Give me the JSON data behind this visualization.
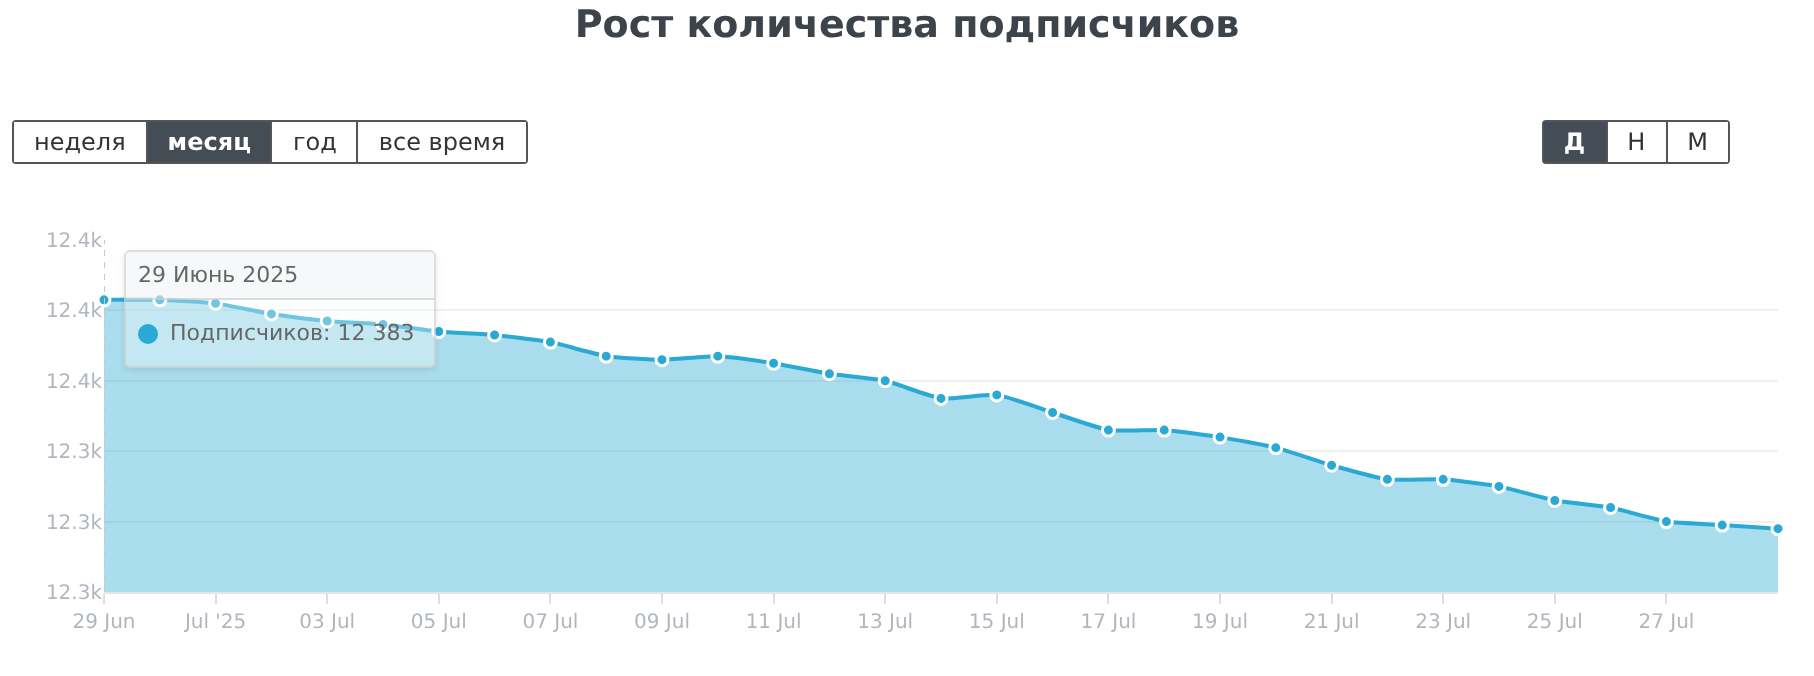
{
  "chart_data": {
    "type": "area",
    "title": "Рост количества подписчиков",
    "x": [
      "2025-06-29",
      "2025-06-30",
      "2025-07-01",
      "2025-07-02",
      "2025-07-03",
      "2025-07-04",
      "2025-07-05",
      "2025-07-06",
      "2025-07-07",
      "2025-07-08",
      "2025-07-09",
      "2025-07-10",
      "2025-07-11",
      "2025-07-12",
      "2025-07-13",
      "2025-07-14",
      "2025-07-15",
      "2025-07-16",
      "2025-07-17",
      "2025-07-18",
      "2025-07-19",
      "2025-07-20",
      "2025-07-21",
      "2025-07-22",
      "2025-07-23",
      "2025-07-24",
      "2025-07-25",
      "2025-07-26",
      "2025-07-27",
      "2025-07-28",
      "2025-07-29"
    ],
    "series": [
      {
        "color": "#29a9d3",
        "values": [
          12383,
          12383,
          12382,
          12379,
          12377,
          12376,
          12374,
          12373,
          12371,
          12367,
          12366,
          12367,
          12365,
          12362,
          12360,
          12355,
          12356,
          12351,
          12346,
          12346,
          12344,
          12341,
          12336,
          12332,
          12332,
          12330,
          12326,
          12324,
          12320,
          12319,
          12318
        ]
      }
    ],
    "xlim": [
      "2025-06-29",
      "2025-07-29"
    ],
    "xticks": [
      {
        "value": "2025-06-29",
        "label": "29 Jun"
      },
      {
        "value": "2025-07-01",
        "label": "Jul '25"
      },
      {
        "value": "2025-07-03",
        "label": "03 Jul"
      },
      {
        "value": "2025-07-05",
        "label": "05 Jul"
      },
      {
        "value": "2025-07-07",
        "label": "07 Jul"
      },
      {
        "value": "2025-07-09",
        "label": "09 Jul"
      },
      {
        "value": "2025-07-11",
        "label": "11 Jul"
      },
      {
        "value": "2025-07-13",
        "label": "13 Jul"
      },
      {
        "value": "2025-07-15",
        "label": "15 Jul"
      },
      {
        "value": "2025-07-17",
        "label": "17 Jul"
      },
      {
        "value": "2025-07-19",
        "label": "19 Jul"
      },
      {
        "value": "2025-07-21",
        "label": "21 Jul"
      },
      {
        "value": "2025-07-23",
        "label": "23 Jul"
      },
      {
        "value": "2025-07-25",
        "label": "25 Jul"
      },
      {
        "value": "2025-07-27",
        "label": "27 Jul"
      }
    ],
    "ylim": [
      12300,
      12400
    ],
    "yticks": [
      {
        "value": 12300,
        "label": "12.3k"
      },
      {
        "value": 12320,
        "label": "12.3k"
      },
      {
        "value": 12340,
        "label": "12.3k"
      },
      {
        "value": 12360,
        "label": "12.4k"
      },
      {
        "value": 12380,
        "label": "12.4k"
      },
      {
        "value": 12400,
        "label": "12.4k"
      }
    ],
    "grid": "y",
    "marker": "circle",
    "line_style": "solid",
    "legend": false,
    "ref_lines": [
      {
        "axis": "x",
        "value": "2025-06-29",
        "label": null,
        "color": "#c8c8c8",
        "line_style": "dotted"
      }
    ],
    "annotations": [
      "неделя",
      "месяц",
      "год",
      "все время",
      "Д",
      "Н",
      "М",
      "29 Июнь 2025",
      "Подписчиков: 12 383"
    ]
  }
}
